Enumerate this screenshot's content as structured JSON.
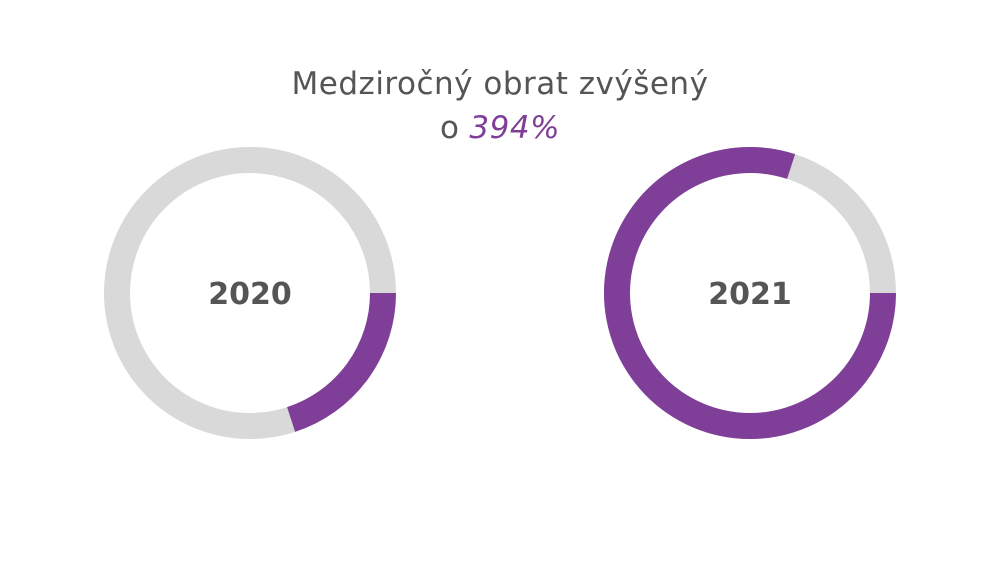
{
  "title": {
    "line1": "Medziročný obrat zvýšený",
    "line2_prefix": "o",
    "line2_highlight": "394%"
  },
  "colors": {
    "accent": "#7f3f98",
    "track": "#d9d9d9",
    "text": "#555555"
  },
  "chart_data": {
    "type": "pie",
    "variant": "donut",
    "title": "Medziročný obrat zvýšený o 394%",
    "series": [
      {
        "name": "2020",
        "value": 0.2
      },
      {
        "name": "2021",
        "value": 0.8
      }
    ]
  }
}
